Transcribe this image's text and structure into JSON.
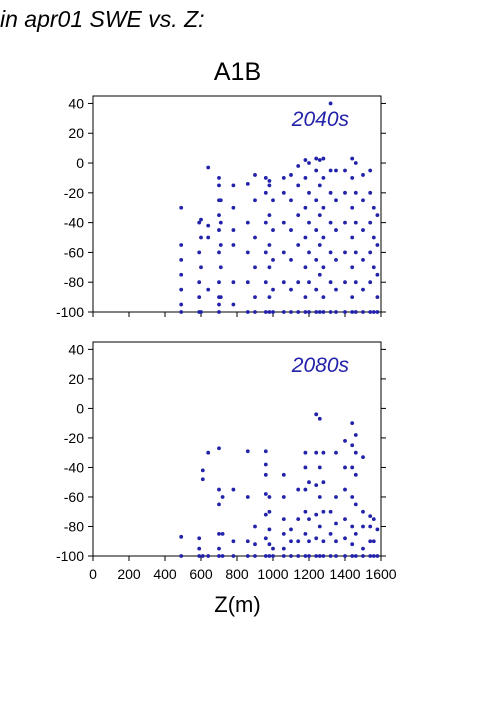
{
  "header": {
    "text": "in apr01 SWE vs. Z:"
  },
  "title": "A1B",
  "chart_data": [
    {
      "type": "scatter",
      "label": "2040s",
      "xlabel": "Z(m)",
      "xlim": [
        0,
        1600
      ],
      "ylim": [
        -100,
        45
      ],
      "xticks": [
        0,
        200,
        400,
        600,
        800,
        1000,
        1200,
        1400,
        1600
      ],
      "yticks": [
        -100,
        -80,
        -60,
        -40,
        -20,
        0,
        20,
        40
      ],
      "point_color": "#2222aa",
      "points": [
        [
          490,
          -100
        ],
        [
          490,
          -95
        ],
        [
          490,
          -85
        ],
        [
          490,
          -75
        ],
        [
          490,
          -65
        ],
        [
          490,
          -55
        ],
        [
          490,
          -30
        ],
        [
          590,
          -100
        ],
        [
          590,
          -90
        ],
        [
          590,
          -80
        ],
        [
          590,
          -60
        ],
        [
          590,
          -40
        ],
        [
          600,
          -100
        ],
        [
          600,
          -70
        ],
        [
          600,
          -50
        ],
        [
          600,
          -38
        ],
        [
          640,
          -85
        ],
        [
          640,
          -50
        ],
        [
          640,
          -42
        ],
        [
          640,
          -3
        ],
        [
          700,
          -100
        ],
        [
          700,
          -95
        ],
        [
          700,
          -90
        ],
        [
          700,
          -80
        ],
        [
          700,
          -60
        ],
        [
          700,
          -45
        ],
        [
          700,
          -35
        ],
        [
          700,
          -25
        ],
        [
          700,
          -15
        ],
        [
          700,
          -10
        ],
        [
          710,
          -90
        ],
        [
          710,
          -70
        ],
        [
          710,
          -55
        ],
        [
          710,
          -40
        ],
        [
          710,
          -25
        ],
        [
          780,
          -95
        ],
        [
          780,
          -80
        ],
        [
          780,
          -55
        ],
        [
          780,
          -45
        ],
        [
          780,
          -30
        ],
        [
          780,
          -15
        ],
        [
          860,
          -100
        ],
        [
          860,
          -80
        ],
        [
          860,
          -60
        ],
        [
          860,
          -40
        ],
        [
          860,
          -14
        ],
        [
          900,
          -100
        ],
        [
          900,
          -90
        ],
        [
          900,
          -70
        ],
        [
          900,
          -50
        ],
        [
          900,
          -25
        ],
        [
          900,
          -8
        ],
        [
          960,
          -100
        ],
        [
          960,
          -80
        ],
        [
          960,
          -60
        ],
        [
          960,
          -40
        ],
        [
          960,
          -20
        ],
        [
          960,
          -10
        ],
        [
          980,
          -100
        ],
        [
          980,
          -90
        ],
        [
          980,
          -70
        ],
        [
          980,
          -55
        ],
        [
          980,
          -35
        ],
        [
          980,
          -15
        ],
        [
          980,
          -12
        ],
        [
          1000,
          -100
        ],
        [
          1000,
          -85
        ],
        [
          1000,
          -65
        ],
        [
          1000,
          -45
        ],
        [
          1000,
          -25
        ],
        [
          1060,
          -100
        ],
        [
          1060,
          -80
        ],
        [
          1060,
          -60
        ],
        [
          1060,
          -40
        ],
        [
          1060,
          -20
        ],
        [
          1060,
          -10
        ],
        [
          1100,
          -100
        ],
        [
          1100,
          -85
        ],
        [
          1100,
          -65
        ],
        [
          1100,
          -45
        ],
        [
          1100,
          -25
        ],
        [
          1100,
          -8
        ],
        [
          1140,
          -100
        ],
        [
          1140,
          -80
        ],
        [
          1140,
          -55
        ],
        [
          1140,
          -35
        ],
        [
          1140,
          -15
        ],
        [
          1140,
          -2
        ],
        [
          1180,
          -100
        ],
        [
          1180,
          -90
        ],
        [
          1180,
          -70
        ],
        [
          1180,
          -50
        ],
        [
          1180,
          -30
        ],
        [
          1180,
          -10
        ],
        [
          1180,
          2
        ],
        [
          1200,
          -100
        ],
        [
          1200,
          -80
        ],
        [
          1200,
          -60
        ],
        [
          1200,
          -40
        ],
        [
          1200,
          -20
        ],
        [
          1200,
          0
        ],
        [
          1240,
          -100
        ],
        [
          1240,
          -85
        ],
        [
          1240,
          -65
        ],
        [
          1240,
          -45
        ],
        [
          1240,
          -25
        ],
        [
          1240,
          -5
        ],
        [
          1240,
          3
        ],
        [
          1260,
          -100
        ],
        [
          1260,
          -75
        ],
        [
          1260,
          -55
        ],
        [
          1260,
          -35
        ],
        [
          1260,
          -15
        ],
        [
          1260,
          2
        ],
        [
          1280,
          -100
        ],
        [
          1280,
          -90
        ],
        [
          1280,
          -70
        ],
        [
          1280,
          -50
        ],
        [
          1280,
          -30
        ],
        [
          1280,
          -10
        ],
        [
          1280,
          3
        ],
        [
          1320,
          -100
        ],
        [
          1320,
          -80
        ],
        [
          1320,
          -60
        ],
        [
          1320,
          -40
        ],
        [
          1320,
          -20
        ],
        [
          1320,
          -5
        ],
        [
          1320,
          40
        ],
        [
          1350,
          -100
        ],
        [
          1350,
          -85
        ],
        [
          1350,
          -65
        ],
        [
          1350,
          -45
        ],
        [
          1350,
          -25
        ],
        [
          1350,
          -5
        ],
        [
          1400,
          -100
        ],
        [
          1400,
          -80
        ],
        [
          1400,
          -60
        ],
        [
          1400,
          -40
        ],
        [
          1400,
          -20
        ],
        [
          1400,
          -5
        ],
        [
          1440,
          -100
        ],
        [
          1440,
          -90
        ],
        [
          1440,
          -70
        ],
        [
          1440,
          -50
        ],
        [
          1440,
          -30
        ],
        [
          1440,
          -10
        ],
        [
          1440,
          3
        ],
        [
          1460,
          -100
        ],
        [
          1460,
          -80
        ],
        [
          1460,
          -60
        ],
        [
          1460,
          -40
        ],
        [
          1460,
          -20
        ],
        [
          1460,
          0
        ],
        [
          1500,
          -100
        ],
        [
          1500,
          -85
        ],
        [
          1500,
          -65
        ],
        [
          1500,
          -45
        ],
        [
          1500,
          -25
        ],
        [
          1500,
          -8
        ],
        [
          1540,
          -100
        ],
        [
          1540,
          -80
        ],
        [
          1540,
          -60
        ],
        [
          1540,
          -40
        ],
        [
          1540,
          -20
        ],
        [
          1540,
          -5
        ],
        [
          1560,
          -100
        ],
        [
          1560,
          -70
        ],
        [
          1560,
          -50
        ],
        [
          1560,
          -30
        ],
        [
          1580,
          -100
        ],
        [
          1580,
          -90
        ],
        [
          1580,
          -75
        ],
        [
          1580,
          -55
        ],
        [
          1580,
          -35
        ]
      ]
    },
    {
      "type": "scatter",
      "label": "2080s",
      "xlabel": "Z(m)",
      "xlim": [
        0,
        1600
      ],
      "ylim": [
        -100,
        45
      ],
      "xticks": [
        0,
        200,
        400,
        600,
        800,
        1000,
        1200,
        1400,
        1600
      ],
      "yticks": [
        -100,
        -80,
        -60,
        -40,
        -20,
        0,
        20,
        40
      ],
      "point_color": "#2222aa",
      "points": [
        [
          490,
          -100
        ],
        [
          490,
          -87
        ],
        [
          590,
          -100
        ],
        [
          590,
          -95
        ],
        [
          590,
          -88
        ],
        [
          610,
          -100
        ],
        [
          610,
          -42
        ],
        [
          610,
          -48
        ],
        [
          640,
          -100
        ],
        [
          640,
          -30
        ],
        [
          700,
          -100
        ],
        [
          700,
          -95
        ],
        [
          700,
          -85
        ],
        [
          700,
          -65
        ],
        [
          700,
          -55
        ],
        [
          700,
          -27
        ],
        [
          720,
          -100
        ],
        [
          720,
          -85
        ],
        [
          720,
          -60
        ],
        [
          780,
          -100
        ],
        [
          780,
          -90
        ],
        [
          780,
          -55
        ],
        [
          860,
          -100
        ],
        [
          860,
          -90
        ],
        [
          860,
          -60
        ],
        [
          860,
          -29
        ],
        [
          900,
          -100
        ],
        [
          900,
          -92
        ],
        [
          900,
          -80
        ],
        [
          960,
          -100
        ],
        [
          960,
          -88
        ],
        [
          960,
          -72
        ],
        [
          960,
          -58
        ],
        [
          960,
          -45
        ],
        [
          960,
          -38
        ],
        [
          960,
          -29
        ],
        [
          980,
          -100
        ],
        [
          980,
          -92
        ],
        [
          980,
          -82
        ],
        [
          980,
          -70
        ],
        [
          980,
          -60
        ],
        [
          1000,
          -100
        ],
        [
          1000,
          -95
        ],
        [
          1060,
          -100
        ],
        [
          1060,
          -95
        ],
        [
          1060,
          -85
        ],
        [
          1060,
          -75
        ],
        [
          1060,
          -60
        ],
        [
          1060,
          -45
        ],
        [
          1100,
          -100
        ],
        [
          1100,
          -90
        ],
        [
          1100,
          -82
        ],
        [
          1140,
          -100
        ],
        [
          1140,
          -90
        ],
        [
          1140,
          -75
        ],
        [
          1140,
          -55
        ],
        [
          1180,
          -100
        ],
        [
          1180,
          -85
        ],
        [
          1180,
          -70
        ],
        [
          1180,
          -55
        ],
        [
          1180,
          -40
        ],
        [
          1180,
          -30
        ],
        [
          1200,
          -100
        ],
        [
          1200,
          -90
        ],
        [
          1200,
          -75
        ],
        [
          1200,
          -50
        ],
        [
          1240,
          -100
        ],
        [
          1240,
          -88
        ],
        [
          1240,
          -72
        ],
        [
          1240,
          -52
        ],
        [
          1240,
          -30
        ],
        [
          1240,
          -4
        ],
        [
          1260,
          -100
        ],
        [
          1260,
          -80
        ],
        [
          1260,
          -60
        ],
        [
          1260,
          -40
        ],
        [
          1260,
          -7
        ],
        [
          1280,
          -100
        ],
        [
          1280,
          -90
        ],
        [
          1280,
          -70
        ],
        [
          1280,
          -50
        ],
        [
          1280,
          -30
        ],
        [
          1320,
          -100
        ],
        [
          1320,
          -85
        ],
        [
          1320,
          -70
        ],
        [
          1350,
          -100
        ],
        [
          1350,
          -90
        ],
        [
          1350,
          -78
        ],
        [
          1350,
          -60
        ],
        [
          1350,
          -30
        ],
        [
          1400,
          -100
        ],
        [
          1400,
          -88
        ],
        [
          1400,
          -75
        ],
        [
          1400,
          -55
        ],
        [
          1400,
          -40
        ],
        [
          1400,
          -22
        ],
        [
          1440,
          -100
        ],
        [
          1440,
          -92
        ],
        [
          1440,
          -80
        ],
        [
          1440,
          -60
        ],
        [
          1440,
          -40
        ],
        [
          1440,
          -25
        ],
        [
          1440,
          -10
        ],
        [
          1460,
          -100
        ],
        [
          1460,
          -85
        ],
        [
          1460,
          -65
        ],
        [
          1460,
          -45
        ],
        [
          1460,
          -30
        ],
        [
          1460,
          -18
        ],
        [
          1500,
          -100
        ],
        [
          1500,
          -95
        ],
        [
          1500,
          -80
        ],
        [
          1500,
          -70
        ],
        [
          1500,
          -33
        ],
        [
          1540,
          -100
        ],
        [
          1540,
          -90
        ],
        [
          1540,
          -80
        ],
        [
          1540,
          -73
        ],
        [
          1560,
          -100
        ],
        [
          1560,
          -90
        ],
        [
          1560,
          -75
        ],
        [
          1580,
          -100
        ],
        [
          1580,
          -82
        ]
      ]
    }
  ]
}
